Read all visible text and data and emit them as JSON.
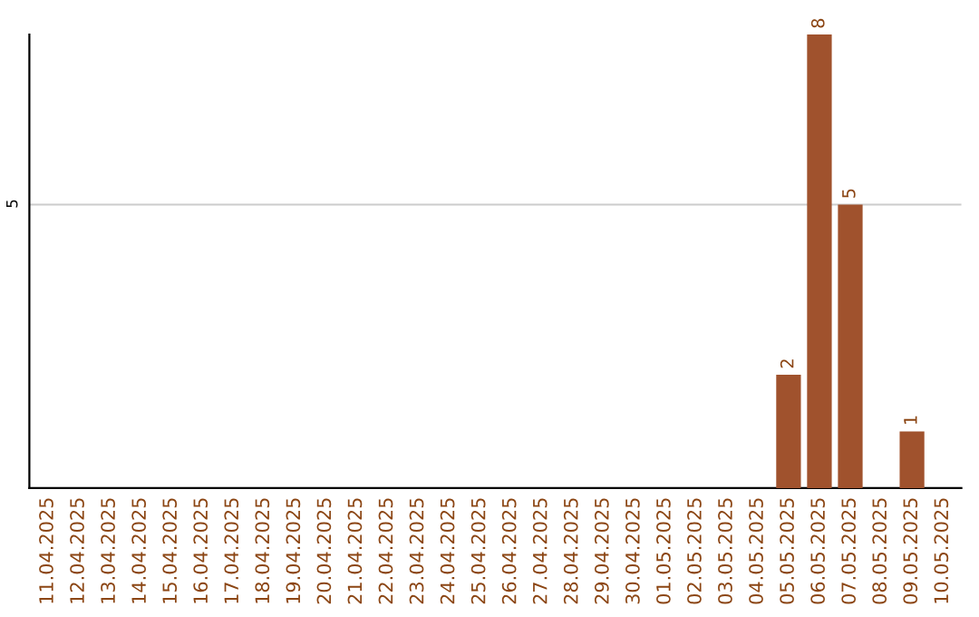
{
  "chart_data": {
    "type": "bar",
    "categories": [
      "11.04.2025",
      "12.04.2025",
      "13.04.2025",
      "14.04.2025",
      "15.04.2025",
      "16.04.2025",
      "17.04.2025",
      "18.04.2025",
      "19.04.2025",
      "20.04.2025",
      "21.04.2025",
      "22.04.2025",
      "23.04.2025",
      "24.04.2025",
      "25.04.2025",
      "26.04.2025",
      "27.04.2025",
      "28.04.2025",
      "29.04.2025",
      "30.04.2025",
      "01.05.2025",
      "02.05.2025",
      "03.05.2025",
      "04.05.2025",
      "05.05.2025",
      "06.05.2025",
      "07.05.2025",
      "08.05.2025",
      "09.05.2025",
      "10.05.2025"
    ],
    "values": [
      null,
      null,
      null,
      null,
      null,
      null,
      null,
      null,
      null,
      null,
      null,
      null,
      null,
      null,
      null,
      null,
      null,
      null,
      null,
      null,
      null,
      null,
      null,
      null,
      2,
      8,
      5,
      null,
      1,
      null
    ],
    "color": "#a0522d",
    "ylim": [
      0,
      8
    ],
    "yticks": [
      5
    ],
    "grid": "y",
    "data_labels": true
  }
}
